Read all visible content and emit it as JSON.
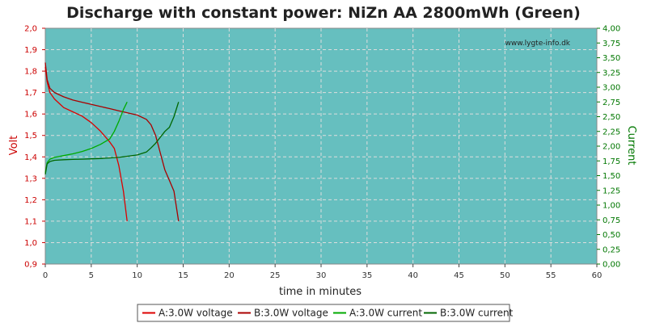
{
  "chart_data": {
    "type": "line",
    "title": "Discharge with constant power: NiZn AA 2800mWh (Green)",
    "watermark": "www.lygte-info.dk",
    "xlabel": "time in minutes",
    "ylabel_left": "Volt",
    "ylabel_right": "Current",
    "xlim": [
      0,
      60
    ],
    "ylim_left": [
      0.9,
      2.0
    ],
    "ylim_right": [
      0.0,
      4.0
    ],
    "x_ticks": [
      "0",
      "5",
      "10",
      "15",
      "20",
      "25",
      "30",
      "35",
      "40",
      "45",
      "50",
      "55",
      "60"
    ],
    "y_left_ticks": [
      "0,9",
      "1,0",
      "1,1",
      "1,2",
      "1,3",
      "1,4",
      "1,5",
      "1,6",
      "1,7",
      "1,8",
      "1,9",
      "2,0"
    ],
    "y_right_ticks": [
      "0,00",
      "0,25",
      "0,50",
      "0,75",
      "1,00",
      "1,25",
      "1,50",
      "1,75",
      "2,00",
      "2,25",
      "2,50",
      "2,75",
      "3,00",
      "3,25",
      "3,50",
      "3,75",
      "4,00"
    ],
    "grid": true,
    "legend_position": "bottom",
    "colors": {
      "plot_background": "#66bfbf",
      "grid": "#dddddd",
      "left_axis": "#cc0000",
      "right_axis": "#007700"
    },
    "series": [
      {
        "name": "A:3.0W voltage",
        "axis": "left",
        "color": "#dd0000",
        "x": [
          0,
          0.2,
          0.5,
          1,
          1.5,
          2,
          3,
          4,
          5,
          6,
          7,
          7.5,
          8,
          8.5,
          8.9
        ],
        "y": [
          1.82,
          1.75,
          1.7,
          1.67,
          1.65,
          1.63,
          1.61,
          1.59,
          1.56,
          1.52,
          1.47,
          1.44,
          1.36,
          1.24,
          1.1
        ]
      },
      {
        "name": "B:3.0W voltage",
        "axis": "left",
        "color": "#aa0000",
        "x": [
          0,
          0.2,
          0.5,
          1,
          2,
          3,
          4,
          5,
          6,
          7,
          8,
          9,
          10,
          11,
          11.5,
          12,
          12.5,
          13,
          13.5,
          14,
          14.5
        ],
        "y": [
          1.84,
          1.76,
          1.72,
          1.7,
          1.68,
          1.665,
          1.655,
          1.645,
          1.635,
          1.625,
          1.615,
          1.605,
          1.595,
          1.575,
          1.55,
          1.5,
          1.42,
          1.34,
          1.29,
          1.24,
          1.1
        ]
      },
      {
        "name": "A:3.0W current",
        "axis": "right",
        "color": "#00aa00",
        "x": [
          0,
          0.2,
          0.5,
          1,
          2,
          3,
          4,
          5,
          6,
          7,
          7.5,
          8,
          8.5,
          8.9
        ],
        "y": [
          1.55,
          1.72,
          1.78,
          1.81,
          1.84,
          1.87,
          1.91,
          1.96,
          2.03,
          2.12,
          2.25,
          2.42,
          2.62,
          2.75
        ]
      },
      {
        "name": "B:3.0W current",
        "axis": "right",
        "color": "#006600",
        "x": [
          0,
          0.2,
          0.5,
          1,
          2,
          3,
          4,
          5,
          6,
          7,
          8,
          9,
          10,
          11,
          11.5,
          12,
          12.5,
          13,
          13.5,
          14,
          14.5
        ],
        "y": [
          1.52,
          1.7,
          1.74,
          1.76,
          1.77,
          1.775,
          1.78,
          1.785,
          1.79,
          1.8,
          1.81,
          1.83,
          1.85,
          1.9,
          1.97,
          2.05,
          2.15,
          2.25,
          2.32,
          2.5,
          2.75
        ]
      }
    ]
  }
}
